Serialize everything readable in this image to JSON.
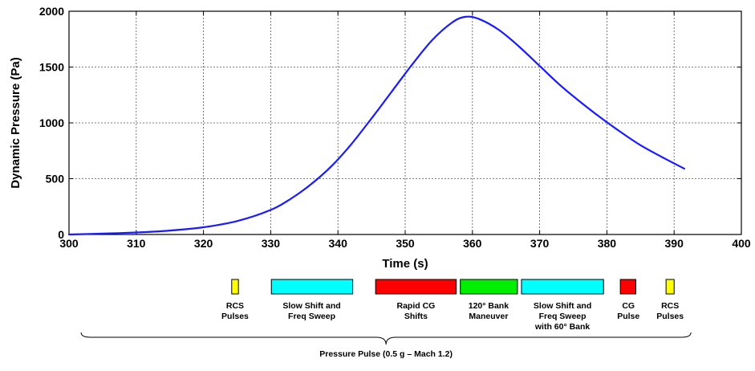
{
  "chart_data": {
    "type": "line",
    "xlabel": "Time (s)",
    "ylabel": "Dynamic Pressure (Pa)",
    "xlim": [
      300,
      400
    ],
    "ylim": [
      0,
      2000
    ],
    "x_ticks": [
      "300",
      "310",
      "320",
      "330",
      "340",
      "350",
      "360",
      "370",
      "380",
      "390",
      "400"
    ],
    "y_ticks": [
      "0",
      "500",
      "1000",
      "1500",
      "2000"
    ],
    "grid": true,
    "line_color": "#1a1aff",
    "series": [
      {
        "x": [
          300,
          305,
          310,
          315,
          320,
          325,
          330,
          333,
          336,
          339,
          342,
          345,
          348,
          351,
          354,
          357,
          359,
          361,
          364,
          367,
          370,
          373,
          376,
          379,
          382,
          385,
          388,
          391.5
        ],
        "y": [
          0,
          8,
          18,
          35,
          65,
          120,
          220,
          320,
          450,
          610,
          810,
          1040,
          1280,
          1520,
          1740,
          1900,
          1950,
          1930,
          1830,
          1680,
          1510,
          1340,
          1190,
          1050,
          920,
          800,
          700,
          590
        ]
      }
    ],
    "phases": [
      {
        "label": "RCS\nPulses",
        "color": "#ffff00",
        "start": 324.2,
        "end": 325.2,
        "label_x": 324.7
      },
      {
        "label": "Slow Shift and\nFreq Sweep",
        "color": "#00ffff",
        "start": 330.1,
        "end": 342.2,
        "label_x": 336.1
      },
      {
        "label": "Rapid CG\nShifts",
        "color": "#ff0000",
        "start": 345.6,
        "end": 357.6,
        "label_x": 351.6
      },
      {
        "label": "120° Bank\nManeuver",
        "color": "#00ee00",
        "start": 358.2,
        "end": 366.7,
        "label_x": 362.4
      },
      {
        "label": "Slow Shift and\nFreq Sweep\nwith 60° Bank",
        "color": "#00ffff",
        "start": 367.3,
        "end": 379.5,
        "label_x": 373.4
      },
      {
        "label": "CG\nPulse",
        "color": "#ff0000",
        "start": 382.0,
        "end": 384.3,
        "label_x": 383.2
      },
      {
        "label": "RCS\nPulses",
        "color": "#ffff00",
        "start": 388.8,
        "end": 390.0,
        "label_x": 389.4
      }
    ],
    "brace_label": "Pressure Pulse (0.5 g – Mach 1.2)"
  }
}
